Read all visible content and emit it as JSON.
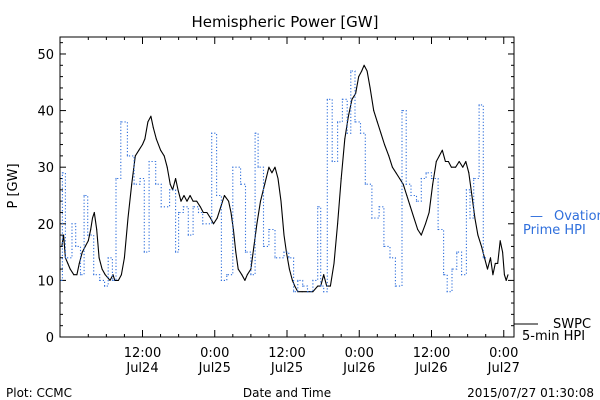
{
  "chart_data": {
    "type": "line",
    "title": "Hemispheric Power [GW]",
    "xlabel": "Date and Time",
    "ylabel": "P [GW]",
    "ylim": [
      0,
      53
    ],
    "y_ticks": [
      0,
      10,
      20,
      30,
      40,
      50
    ],
    "x_ticks": [
      {
        "t": 12,
        "time": "12:00",
        "date": "Jul24"
      },
      {
        "t": 24,
        "time": "0:00",
        "date": "Jul25"
      },
      {
        "t": 36,
        "time": "12:00",
        "date": "Jul25"
      },
      {
        "t": 48,
        "time": "0:00",
        "date": "Jul26"
      },
      {
        "t": 60,
        "time": "12:00",
        "date": "Jul26"
      },
      {
        "t": 72,
        "time": "0:00",
        "date": "Jul27"
      }
    ],
    "xlim": [
      -1.7,
      73.7
    ],
    "grid": false,
    "legend_placement": "right",
    "series": [
      {
        "name": "SWPC 5-min HPI",
        "legend_lines": [
          "SWPC",
          "5-min HPI"
        ],
        "color": "#000000",
        "style": "solid",
        "points": [
          [
            -1.4,
            16
          ],
          [
            -1.1,
            18
          ],
          [
            -0.8,
            14
          ],
          [
            -0.4,
            13
          ],
          [
            0.0,
            12
          ],
          [
            0.6,
            11
          ],
          [
            1.1,
            11
          ],
          [
            1.5,
            13
          ],
          [
            2.0,
            15
          ],
          [
            2.5,
            16
          ],
          [
            3.0,
            17
          ],
          [
            3.4,
            19
          ],
          [
            3.7,
            21
          ],
          [
            4.0,
            22
          ],
          [
            4.4,
            19
          ],
          [
            4.8,
            14
          ],
          [
            5.3,
            12
          ],
          [
            5.8,
            11
          ],
          [
            6.6,
            10
          ],
          [
            7.1,
            11
          ],
          [
            7.4,
            10
          ],
          [
            8.0,
            10
          ],
          [
            8.5,
            11
          ],
          [
            9.0,
            14
          ],
          [
            9.6,
            21
          ],
          [
            10.2,
            27
          ],
          [
            10.8,
            32
          ],
          [
            11.4,
            33
          ],
          [
            12.0,
            34
          ],
          [
            12.4,
            35
          ],
          [
            12.9,
            38
          ],
          [
            13.4,
            39
          ],
          [
            13.8,
            37
          ],
          [
            14.3,
            35
          ],
          [
            15.0,
            33
          ],
          [
            15.6,
            32
          ],
          [
            16.1,
            30
          ],
          [
            16.6,
            27
          ],
          [
            17.0,
            26
          ],
          [
            17.5,
            28
          ],
          [
            17.9,
            26
          ],
          [
            18.4,
            24
          ],
          [
            18.9,
            25
          ],
          [
            19.4,
            24
          ],
          [
            19.9,
            25
          ],
          [
            20.4,
            24
          ],
          [
            21.0,
            24
          ],
          [
            21.6,
            23
          ],
          [
            22.1,
            22
          ],
          [
            22.7,
            22
          ],
          [
            23.3,
            21
          ],
          [
            23.8,
            20
          ],
          [
            24.4,
            21
          ],
          [
            25.0,
            23
          ],
          [
            25.6,
            25
          ],
          [
            26.3,
            24
          ],
          [
            26.7,
            22
          ],
          [
            27.1,
            19
          ],
          [
            27.5,
            15
          ],
          [
            27.9,
            12
          ],
          [
            28.5,
            11
          ],
          [
            29.0,
            10
          ],
          [
            29.4,
            11
          ],
          [
            30.0,
            12
          ],
          [
            30.5,
            16
          ],
          [
            31.0,
            20
          ],
          [
            31.6,
            24
          ],
          [
            32.3,
            27
          ],
          [
            33.0,
            30
          ],
          [
            33.5,
            29
          ],
          [
            34.0,
            30
          ],
          [
            34.5,
            28
          ],
          [
            35.0,
            24
          ],
          [
            35.5,
            18
          ],
          [
            35.9,
            15
          ],
          [
            36.4,
            12
          ],
          [
            36.9,
            10
          ],
          [
            37.3,
            9
          ],
          [
            37.8,
            8
          ],
          [
            38.5,
            8
          ],
          [
            39.4,
            8
          ],
          [
            40.3,
            8
          ],
          [
            41.1,
            9
          ],
          [
            41.6,
            9
          ],
          [
            42.1,
            11
          ],
          [
            42.6,
            9
          ],
          [
            43.2,
            9
          ],
          [
            43.8,
            13
          ],
          [
            44.4,
            20
          ],
          [
            45.0,
            28
          ],
          [
            45.6,
            35
          ],
          [
            46.2,
            39
          ],
          [
            46.8,
            42
          ],
          [
            47.4,
            43
          ],
          [
            47.9,
            46
          ],
          [
            48.4,
            47
          ],
          [
            48.8,
            48
          ],
          [
            49.3,
            47
          ],
          [
            49.8,
            44
          ],
          [
            50.4,
            40
          ],
          [
            51.0,
            38
          ],
          [
            51.6,
            36
          ],
          [
            52.2,
            34
          ],
          [
            52.9,
            32
          ],
          [
            53.5,
            30
          ],
          [
            54.1,
            29
          ],
          [
            54.7,
            28
          ],
          [
            55.3,
            27
          ],
          [
            55.9,
            25
          ],
          [
            56.5,
            23
          ],
          [
            57.1,
            21
          ],
          [
            57.7,
            19
          ],
          [
            58.3,
            18
          ],
          [
            59.0,
            20
          ],
          [
            59.6,
            22
          ],
          [
            60.2,
            27
          ],
          [
            60.8,
            31
          ],
          [
            61.3,
            32
          ],
          [
            61.8,
            33
          ],
          [
            62.3,
            31
          ],
          [
            62.8,
            31
          ],
          [
            63.3,
            30
          ],
          [
            64.0,
            30
          ],
          [
            64.6,
            31
          ],
          [
            65.2,
            30
          ],
          [
            65.7,
            31
          ],
          [
            66.2,
            29
          ],
          [
            66.7,
            25
          ],
          [
            67.2,
            21
          ],
          [
            67.7,
            18
          ],
          [
            68.3,
            16
          ],
          [
            68.8,
            14
          ],
          [
            69.3,
            12
          ],
          [
            69.8,
            14
          ],
          [
            70.2,
            11
          ],
          [
            70.6,
            13
          ],
          [
            71.0,
            13
          ],
          [
            71.4,
            17
          ],
          [
            71.8,
            15
          ],
          [
            72.1,
            11
          ],
          [
            72.4,
            10
          ],
          [
            72.7,
            11
          ]
        ]
      },
      {
        "name": "Ovation Prime HPI",
        "legend_lines": [
          "Ovation",
          "Prime HPI"
        ],
        "color": "#2f6fdc",
        "style": "dotted-step",
        "points": [
          [
            -1.5,
            10
          ],
          [
            -1.3,
            29
          ],
          [
            -0.8,
            14
          ],
          [
            0.3,
            20
          ],
          [
            0.9,
            16
          ],
          [
            1.7,
            11
          ],
          [
            2.3,
            25
          ],
          [
            2.9,
            18
          ],
          [
            3.9,
            11
          ],
          [
            4.9,
            10
          ],
          [
            5.7,
            9
          ],
          [
            6.3,
            14
          ],
          [
            7.0,
            10
          ],
          [
            7.6,
            28
          ],
          [
            8.4,
            38
          ],
          [
            9.5,
            32
          ],
          [
            10.6,
            27
          ],
          [
            11.6,
            28
          ],
          [
            12.3,
            15
          ],
          [
            13.1,
            31
          ],
          [
            14.2,
            27
          ],
          [
            15.1,
            23
          ],
          [
            16.5,
            26
          ],
          [
            17.5,
            15
          ],
          [
            18.0,
            22
          ],
          [
            18.8,
            23
          ],
          [
            19.6,
            18
          ],
          [
            20.4,
            23
          ],
          [
            21.3,
            22
          ],
          [
            22.0,
            20
          ],
          [
            23.5,
            36
          ],
          [
            24.3,
            25
          ],
          [
            25.1,
            10
          ],
          [
            26.0,
            11
          ],
          [
            27.0,
            30
          ],
          [
            28.3,
            27
          ],
          [
            29.1,
            15
          ],
          [
            30.0,
            11
          ],
          [
            30.7,
            36
          ],
          [
            31.2,
            30
          ],
          [
            32.1,
            16
          ],
          [
            33.0,
            19
          ],
          [
            34.0,
            14
          ],
          [
            35.5,
            15
          ],
          [
            36.3,
            14
          ],
          [
            37.1,
            8
          ],
          [
            37.8,
            10
          ],
          [
            38.6,
            9
          ],
          [
            39.4,
            8
          ],
          [
            40.3,
            10
          ],
          [
            41.1,
            23
          ],
          [
            41.6,
            9
          ],
          [
            42.1,
            8
          ],
          [
            42.7,
            42
          ],
          [
            43.5,
            31
          ],
          [
            44.4,
            38
          ],
          [
            45.2,
            42
          ],
          [
            46.0,
            36
          ],
          [
            46.6,
            47
          ],
          [
            47.3,
            38
          ],
          [
            48.2,
            36
          ],
          [
            49.0,
            27
          ],
          [
            50.1,
            21
          ],
          [
            51.3,
            23
          ],
          [
            52.1,
            16
          ],
          [
            53.1,
            14
          ],
          [
            54.0,
            9
          ],
          [
            55.1,
            40
          ],
          [
            55.8,
            27
          ],
          [
            56.6,
            25
          ],
          [
            57.5,
            24
          ],
          [
            58.3,
            28
          ],
          [
            59.1,
            29
          ],
          [
            60.0,
            28
          ],
          [
            61.1,
            19
          ],
          [
            62.0,
            11
          ],
          [
            62.6,
            8
          ],
          [
            63.4,
            12
          ],
          [
            64.2,
            15
          ],
          [
            65.0,
            11
          ],
          [
            65.8,
            26
          ],
          [
            66.4,
            21
          ],
          [
            67.0,
            28
          ],
          [
            67.9,
            41
          ],
          [
            68.6,
            14
          ]
        ]
      }
    ]
  },
  "footer": {
    "plot_credit": "Plot: CCMC",
    "timestamp": "2015/07/27 01:30:08"
  },
  "legend": {
    "ovation_dash": "—"
  }
}
